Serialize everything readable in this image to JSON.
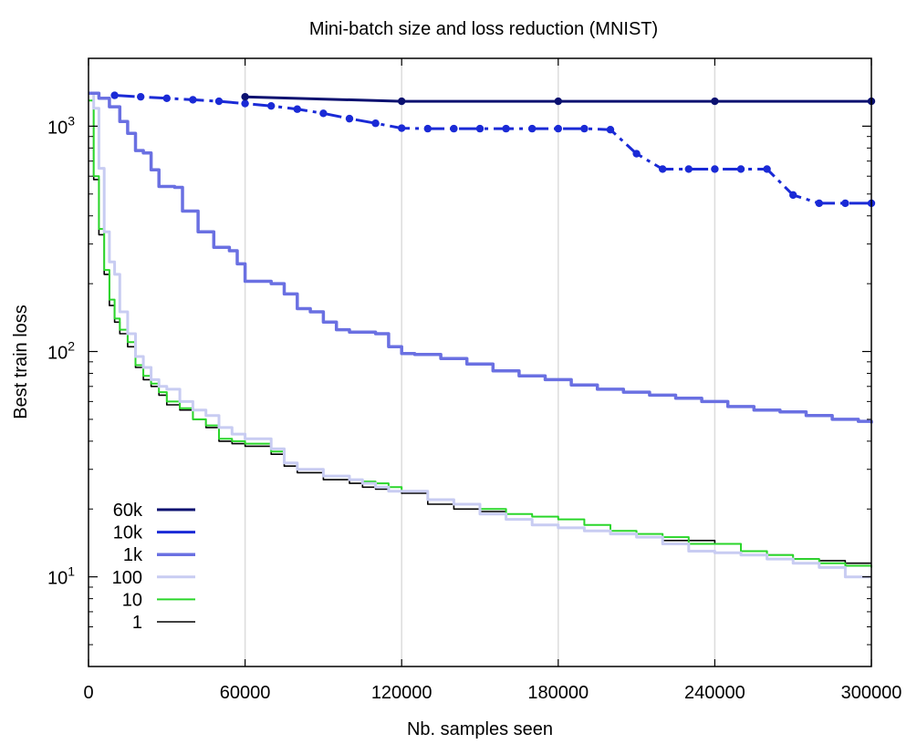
{
  "chart_data": {
    "type": "line",
    "title": "Mini-batch size and loss reduction (MNIST)",
    "xlabel": "Nb. samples seen",
    "ylabel": "Best train loss",
    "xlim": [
      0,
      300000
    ],
    "ylim": [
      4,
      2000
    ],
    "yscale": "log",
    "grid": "vertical",
    "legend_position": "bottom-left",
    "x_ticks": [
      {
        "value": 0,
        "label": "0"
      },
      {
        "value": 60000,
        "label": "60000"
      },
      {
        "value": 120000,
        "label": "120000"
      },
      {
        "value": 180000,
        "label": "180000"
      },
      {
        "value": 240000,
        "label": "240000"
      },
      {
        "value": 300000,
        "label": "300000"
      }
    ],
    "y_ticks": [
      {
        "value": 10,
        "base": "10",
        "exp": "1"
      },
      {
        "value": 100,
        "base": "10",
        "exp": "2"
      },
      {
        "value": 1000,
        "base": "10",
        "exp": "3"
      }
    ],
    "series": [
      {
        "name": "60k",
        "color": "#0b1170",
        "width": 3,
        "markers": true,
        "x": [
          60000,
          120000,
          180000,
          240000,
          300000
        ],
        "y": [
          1350,
          1290,
          1290,
          1290,
          1290
        ]
      },
      {
        "name": "10k",
        "color": "#1a2ad6",
        "width": 3,
        "markers": true,
        "dashed": true,
        "x": [
          10000,
          20000,
          30000,
          40000,
          50000,
          60000,
          70000,
          80000,
          90000,
          100000,
          110000,
          120000,
          130000,
          140000,
          150000,
          160000,
          170000,
          180000,
          190000,
          200000,
          210000,
          220000,
          230000,
          240000,
          250000,
          260000,
          270000,
          280000,
          290000,
          300000
        ],
        "y": [
          1370,
          1350,
          1330,
          1310,
          1290,
          1260,
          1230,
          1190,
          1140,
          1080,
          1030,
          980,
          975,
          975,
          975,
          975,
          975,
          975,
          975,
          965,
          755,
          645,
          645,
          645,
          645,
          645,
          495,
          455,
          455,
          455
        ]
      },
      {
        "name": "1k",
        "color": "#6a70e2",
        "width": 3.5,
        "markers": false,
        "x": [
          0,
          4000,
          8000,
          12000,
          15000,
          18000,
          21000,
          24000,
          27000,
          33000,
          36000,
          42000,
          48000,
          54000,
          57000,
          60000,
          70000,
          75000,
          80000,
          85000,
          90000,
          95000,
          100000,
          110000,
          115000,
          120000,
          125000,
          135000,
          145000,
          155000,
          165000,
          175000,
          185000,
          195000,
          205000,
          215000,
          225000,
          235000,
          245000,
          255000,
          265000,
          275000,
          285000,
          295000,
          300000
        ],
        "y": [
          1400,
          1330,
          1220,
          1050,
          930,
          780,
          760,
          640,
          540,
          535,
          420,
          340,
          290,
          280,
          245,
          205,
          200,
          180,
          155,
          150,
          135,
          125,
          122,
          120,
          105,
          98,
          97,
          93,
          88,
          82,
          78,
          75,
          71,
          68,
          66,
          64,
          62,
          60,
          57,
          55,
          54,
          52,
          50,
          49,
          48
        ]
      },
      {
        "name": "100",
        "color": "#c8ccf2",
        "width": 3,
        "markers": false,
        "x": [
          0,
          2000,
          4000,
          6000,
          8000,
          10000,
          12000,
          15000,
          18000,
          21000,
          24000,
          27000,
          30000,
          35000,
          40000,
          45000,
          50000,
          55000,
          60000,
          70000,
          75000,
          80000,
          90000,
          100000,
          105000,
          110000,
          115000,
          120000,
          130000,
          140000,
          150000,
          160000,
          170000,
          180000,
          190000,
          200000,
          210000,
          220000,
          230000,
          240000,
          250000,
          260000,
          270000,
          280000,
          290000,
          300000
        ],
        "y": [
          1400,
          1200,
          650,
          340,
          250,
          220,
          150,
          120,
          95,
          85,
          75,
          70,
          68,
          60,
          55,
          52,
          46,
          43,
          41,
          37,
          32,
          30,
          28,
          27,
          26,
          25,
          24,
          24,
          22,
          21,
          19,
          18,
          17,
          16.5,
          16,
          15.5,
          15,
          14,
          13,
          12.8,
          12.5,
          12,
          11.5,
          11,
          10,
          10
        ]
      },
      {
        "name": "10",
        "color": "#2ad62a",
        "width": 2,
        "markers": false,
        "x": [
          0,
          2000,
          4000,
          6000,
          8000,
          10000,
          12000,
          15000,
          18000,
          21000,
          24000,
          27000,
          30000,
          35000,
          40000,
          45000,
          50000,
          55000,
          60000,
          70000,
          75000,
          80000,
          90000,
          100000,
          105000,
          110000,
          115000,
          120000,
          130000,
          140000,
          150000,
          160000,
          170000,
          180000,
          190000,
          200000,
          210000,
          220000,
          230000,
          240000,
          250000,
          260000,
          270000,
          280000,
          290000,
          300000
        ],
        "y": [
          1300,
          600,
          350,
          230,
          170,
          140,
          125,
          110,
          87,
          78,
          72,
          66,
          60,
          56,
          50,
          47,
          41,
          40,
          39,
          36,
          32,
          30,
          28,
          27,
          26.5,
          26,
          25,
          24,
          22,
          21,
          20,
          19,
          18.5,
          18,
          17,
          16,
          15.5,
          15,
          14,
          14,
          13,
          12.5,
          12,
          11.5,
          11.2,
          11
        ]
      },
      {
        "name": "1",
        "color": "#000000",
        "width": 1.6,
        "markers": false,
        "x": [
          0,
          2000,
          4000,
          6000,
          8000,
          10000,
          12000,
          15000,
          18000,
          21000,
          24000,
          27000,
          30000,
          35000,
          40000,
          45000,
          50000,
          55000,
          60000,
          70000,
          75000,
          80000,
          90000,
          100000,
          105000,
          110000,
          115000,
          120000,
          130000,
          140000,
          150000,
          160000,
          170000,
          180000,
          190000,
          200000,
          210000,
          220000,
          230000,
          240000,
          250000,
          260000,
          270000,
          280000,
          290000,
          300000
        ],
        "y": [
          1400,
          580,
          330,
          220,
          160,
          135,
          120,
          105,
          85,
          75,
          70,
          64,
          58,
          55,
          50,
          46,
          40,
          39,
          38,
          35,
          31,
          29,
          27,
          26,
          25,
          24.5,
          24,
          23.5,
          21,
          20,
          19.5,
          18,
          17,
          16.5,
          16,
          15.5,
          15,
          14.5,
          14.5,
          14,
          13,
          12.5,
          12,
          11.8,
          11.5,
          11.5
        ]
      }
    ]
  }
}
